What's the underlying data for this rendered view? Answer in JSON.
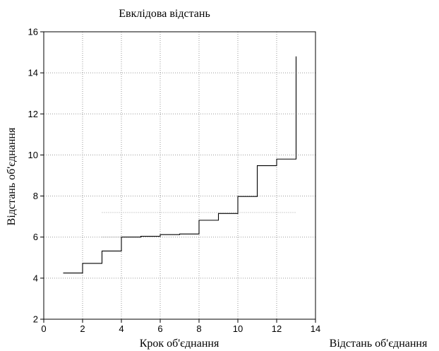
{
  "chart_data": {
    "type": "line",
    "title": "Евклідова відстань",
    "xlabel": "Крок об'єднання",
    "ylabel": "Відстань об'єднання",
    "legend_label": "Відстань об'єднання",
    "xlim": [
      0,
      14
    ],
    "ylim": [
      2,
      16
    ],
    "xticks": [
      0,
      2,
      4,
      6,
      8,
      10,
      12,
      14
    ],
    "yticks": [
      2,
      4,
      6,
      8,
      10,
      12,
      14,
      16
    ],
    "grid": true,
    "step": "post",
    "series": [
      {
        "x": [
          1,
          2,
          3,
          4,
          5,
          6,
          7,
          8,
          9,
          10,
          11,
          12,
          13
        ],
        "values": [
          4.25,
          4.72,
          5.32,
          6.0,
          6.04,
          6.12,
          6.15,
          6.82,
          7.15,
          7.98,
          9.48,
          9.8,
          14.8
        ]
      }
    ],
    "annotation_lines": [
      {
        "y": 7.2,
        "x_from": 3.0,
        "x_to": 13.0
      },
      {
        "y": 6.0,
        "x_from": 3.0,
        "x_to": 3.0
      }
    ]
  }
}
